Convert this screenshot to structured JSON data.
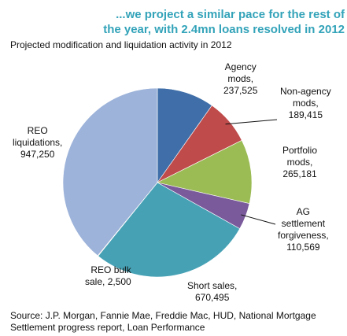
{
  "header": {
    "title_line1": "...we project a similar pace for the rest of",
    "title_line2": "the year, with 2.4mn loans resolved in 2012",
    "subtitle": "Projected modification and liquidation activity in 2012"
  },
  "chart_data": {
    "type": "pie",
    "title": "Projected modification and liquidation activity in 2012",
    "slices": [
      {
        "label_lines": [
          "Agency",
          "mods,"
        ],
        "value_text": "237,525",
        "value": 237525,
        "color": "#3f6ea8"
      },
      {
        "label_lines": [
          "Non-agency",
          "mods,"
        ],
        "value_text": "189,415",
        "value": 189415,
        "color": "#bf4b4b"
      },
      {
        "label_lines": [
          "Portfolio",
          "mods,"
        ],
        "value_text": "265,181",
        "value": 265181,
        "color": "#9bbb55"
      },
      {
        "label_lines": [
          "AG",
          "settlement",
          "forgiveness,"
        ],
        "value_text": "110,569",
        "value": 110569,
        "color": "#7a5a9b"
      },
      {
        "label_lines": [
          "Short sales,"
        ],
        "value_text": "670,495",
        "value": 670495,
        "color": "#46a1b5"
      },
      {
        "label_lines": [
          "REO bulk",
          "sale,"
        ],
        "value_text": "2,500",
        "value": 2500,
        "color": "#f6a26c"
      },
      {
        "label_lines": [
          "REO",
          "liquidations,"
        ],
        "value_text": "947,250",
        "value": 947250,
        "color": "#9db3d9"
      }
    ]
  },
  "footer": {
    "source_line1": "Source: J.P. Morgan, Fannie Mae, Freddie Mac, HUD, National Mortgage",
    "source_line2": "Settlement progress report, Loan Performance"
  }
}
